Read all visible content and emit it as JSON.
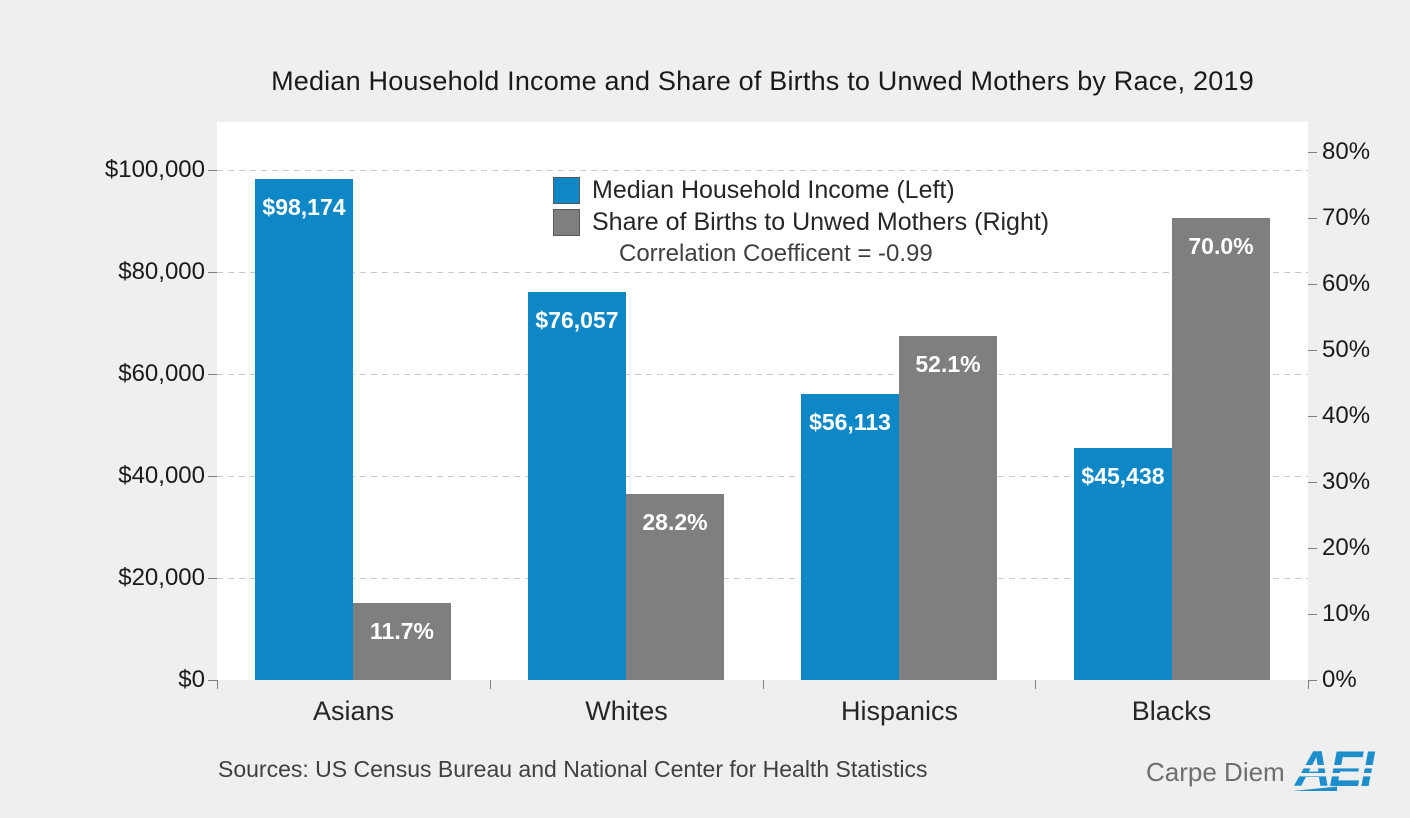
{
  "title": "Median Household Income and Share of Births to Unwed Mothers by Race, 2019",
  "chart_data": {
    "type": "bar",
    "categories": [
      "Asians",
      "Whites",
      "Hispanics",
      "Blacks"
    ],
    "series": [
      {
        "name": "Median Household Income (Left)",
        "axis": "left",
        "color": "#0e87c6",
        "values": [
          98174,
          76057,
          56113,
          45438
        ],
        "labels": [
          "$98,174",
          "$76,057",
          "$56,113",
          "$45,438"
        ]
      },
      {
        "name": "Share of Births to Unwed Mothers (Right)",
        "axis": "right",
        "color": "#7f7f7f",
        "values": [
          11.7,
          28.2,
          52.1,
          70.0
        ],
        "labels": [
          "11.7%",
          "28.2%",
          "52.1%",
          "70.0%"
        ]
      }
    ],
    "left_axis": {
      "min": 0,
      "max": 100000,
      "step": 20000,
      "tick_labels": [
        "$0",
        "$20,000",
        "$40,000",
        "$60,000",
        "$80,000",
        "$100,000"
      ]
    },
    "right_axis": {
      "min": 0,
      "max": 80,
      "step": 10,
      "tick_labels": [
        "0%",
        "10%",
        "20%",
        "30%",
        "40%",
        "50%",
        "60%",
        "70%",
        "80%"
      ]
    },
    "annotation": "Correlation Coefficent = -0.99",
    "legend_position": "top-center-inside",
    "grid": "horizontal-dashed"
  },
  "colors": {
    "background": "#efefef",
    "plot_background": "#ffffff",
    "income_bar": "#0e87c6",
    "unwed_bar": "#7f7f7f",
    "gridline": "#c9c9c9",
    "aei_blue": "#1e8ecb",
    "carpe_gray": "#6d6e71"
  },
  "footer": {
    "sources": "Sources: US Census Bureau and National Center for Health Statistics",
    "logo_text": "Carpe Diem",
    "logo_brand": "AEI"
  }
}
